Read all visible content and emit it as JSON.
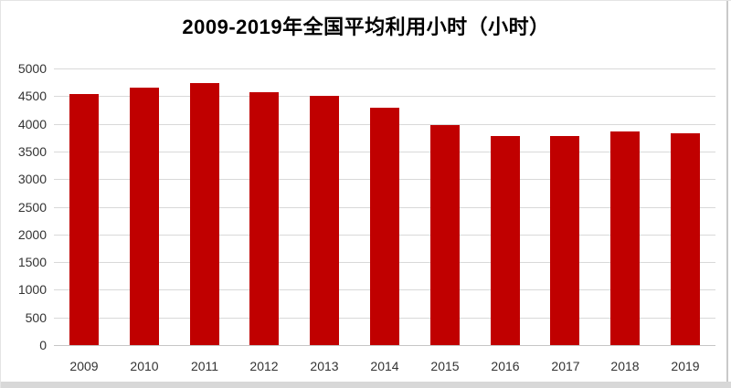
{
  "page": {
    "background_color": "#ffffff",
    "bottom_strip_color": "#d8d8d8",
    "frame_border_color": "#c9c9c9"
  },
  "chart_data": {
    "type": "bar",
    "title": "2009-2019年全国平均利用小时（小时）",
    "categories": [
      "2009",
      "2010",
      "2011",
      "2012",
      "2013",
      "2014",
      "2015",
      "2016",
      "2017",
      "2018",
      "2019"
    ],
    "values": [
      4546,
      4650,
      4730,
      4572,
      4511,
      4286,
      3969,
      3785,
      3786,
      3862,
      3825
    ],
    "xlabel": "",
    "ylabel": "",
    "ylim": [
      0,
      5000
    ],
    "yticks": [
      0,
      500,
      1000,
      1500,
      2000,
      2500,
      3000,
      3500,
      4000,
      4500,
      5000
    ],
    "grid": true,
    "legend": false,
    "bar_color": "#c00000",
    "gridline_color": "#d9d9d9",
    "axis_line_color": "#c6c6c6",
    "tick_label_color": "#333333",
    "title_color": "#000000"
  }
}
